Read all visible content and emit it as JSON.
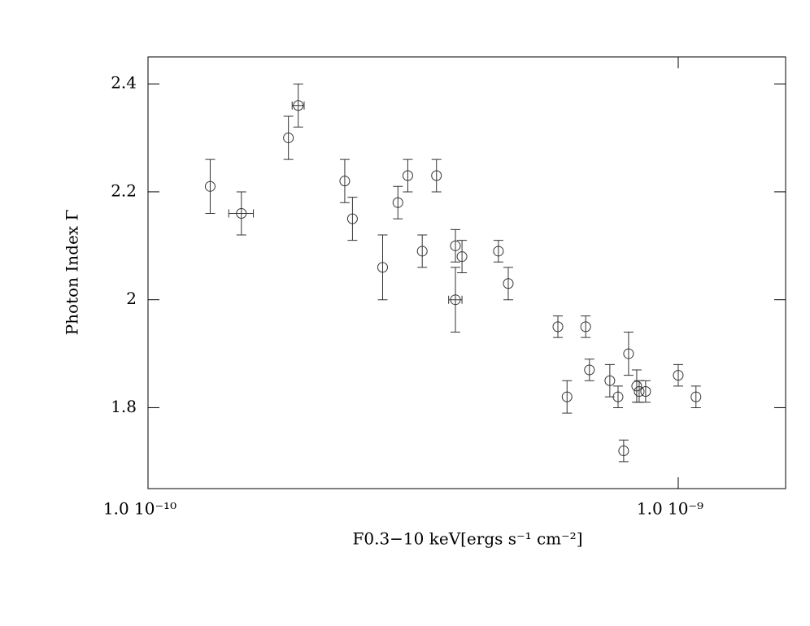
{
  "chart_data": {
    "type": "scatter",
    "xlabel": "F0.3−10 keV[ergs s⁻¹ cm⁻²]",
    "ylabel": "Photon Index Γ",
    "xlog": true,
    "xlim": [
      1e-10,
      1.594e-09
    ],
    "ylim": [
      1.65,
      2.45
    ],
    "xticks": [
      {
        "value": 1e-10,
        "label": "1.0  10⁻¹⁰"
      },
      {
        "value": 1e-09,
        "label": "1.0  10⁻⁹"
      }
    ],
    "yticks": [
      1.8,
      2,
      2.2,
      2.4
    ],
    "series": [
      {
        "color": "#333333",
        "x": [
          1.31e-10,
          1.5e-10,
          1.84e-10,
          1.92e-10,
          2.35e-10,
          2.43e-10,
          2.77e-10,
          2.96e-10,
          3.09e-10,
          3.29e-10,
          3.5e-10,
          3.8e-10,
          3.8e-10,
          3.91e-10,
          4.58e-10,
          4.78e-10,
          5.93e-10,
          6.17e-10,
          6.69e-10,
          6.8e-10,
          7.43e-10,
          7.7e-10,
          7.89e-10,
          8.06e-10,
          8.35e-10,
          8.44e-10,
          8.68e-10,
          1e-09,
          1.08e-09
        ],
        "xerr": [
          null,
          8e-12,
          null,
          5e-12,
          null,
          null,
          null,
          null,
          null,
          null,
          null,
          null,
          1.1e-11,
          null,
          null,
          null,
          null,
          null,
          null,
          null,
          null,
          null,
          null,
          null,
          null,
          null,
          null,
          null,
          null
        ],
        "values": [
          2.21,
          2.16,
          2.3,
          2.36,
          2.22,
          2.15,
          2.06,
          2.18,
          2.23,
          2.09,
          2.23,
          2.1,
          2.0,
          2.08,
          2.09,
          2.03,
          1.95,
          1.82,
          1.95,
          1.87,
          1.85,
          1.82,
          1.72,
          1.9,
          1.84,
          1.83,
          1.83,
          1.86,
          1.82
        ],
        "yerr": [
          0.05,
          0.04,
          0.04,
          0.04,
          0.04,
          0.04,
          0.06,
          0.03,
          0.03,
          0.03,
          0.03,
          0.03,
          0.06,
          0.03,
          0.02,
          0.03,
          0.02,
          0.03,
          0.02,
          0.02,
          0.03,
          0.02,
          0.02,
          0.04,
          0.03,
          0.02,
          0.02,
          0.02,
          0.02
        ]
      }
    ]
  }
}
